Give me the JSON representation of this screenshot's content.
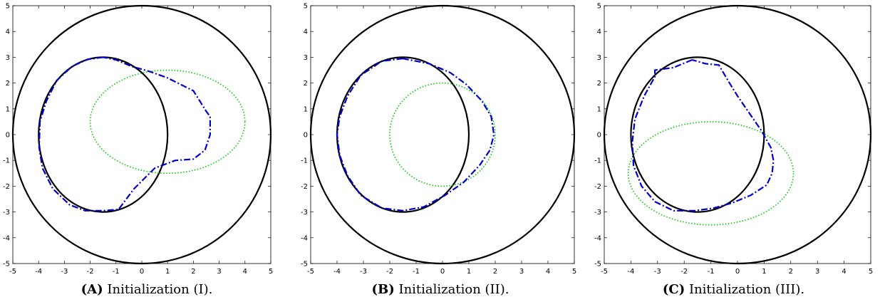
{
  "chart_data": [
    {
      "type": "line",
      "panel_label": "(A)",
      "caption": "Initialization (I).",
      "xlim": [
        -5,
        5
      ],
      "ylim": [
        -5,
        5
      ],
      "xticks": [
        -5,
        -4,
        -3,
        -2,
        -1,
        0,
        1,
        2,
        3,
        4,
        5
      ],
      "yticks": [
        -5,
        -4,
        -3,
        -2,
        -1,
        0,
        1,
        2,
        3,
        4,
        5
      ],
      "grid": false,
      "colors": {
        "outer": "#000000",
        "inner": "#000000",
        "reconstruction": "#0000cc",
        "initial": "#00cc00"
      },
      "series": [
        {
          "style": "solid-black",
          "shape": "ellipse",
          "center": [
            0,
            0
          ],
          "radii": [
            5,
            5
          ]
        },
        {
          "style": "solid-black",
          "shape": "ellipse",
          "center": [
            -1.5,
            0
          ],
          "radii": [
            2.5,
            3
          ]
        },
        {
          "style": "dotted-green",
          "shape": "ellipse",
          "center": [
            1,
            0.5
          ],
          "radii": [
            3,
            2
          ]
        },
        {
          "style": "dashdot-blue",
          "shape": "polyline",
          "x": [
            -1.5,
            -2.1,
            -2.7,
            -3.3,
            -3.7,
            -3.95,
            -3.98,
            -3.85,
            -3.45,
            -2.8,
            -2.2,
            -1.5,
            -0.9,
            -0.3,
            0.5,
            1.3,
            2.0,
            2.45,
            2.65,
            2.65,
            2.5,
            2.0,
            1.0,
            0.3,
            -0.4,
            -1.0,
            -1.5
          ],
          "y": [
            3.0,
            2.92,
            2.65,
            2.1,
            1.3,
            0.5,
            -0.5,
            -1.3,
            -2.1,
            -2.72,
            -2.95,
            -2.95,
            -2.9,
            -2.1,
            -1.3,
            -1.0,
            -0.95,
            -0.6,
            0.0,
            0.7,
            0.9,
            1.7,
            2.2,
            2.45,
            2.65,
            2.9,
            3.0
          ]
        }
      ]
    },
    {
      "type": "line",
      "panel_label": "(B)",
      "caption": "Initialization (II).",
      "xlim": [
        -5,
        5
      ],
      "ylim": [
        -5,
        5
      ],
      "xticks": [
        -5,
        -4,
        -3,
        -2,
        -1,
        0,
        1,
        2,
        3,
        4,
        5
      ],
      "yticks": [
        -5,
        -4,
        -3,
        -2,
        -1,
        0,
        1,
        2,
        3,
        4,
        5
      ],
      "grid": false,
      "colors": {
        "outer": "#000000",
        "inner": "#000000",
        "reconstruction": "#0000cc",
        "initial": "#00cc00"
      },
      "series": [
        {
          "style": "solid-black",
          "shape": "ellipse",
          "center": [
            0,
            0
          ],
          "radii": [
            5,
            5
          ]
        },
        {
          "style": "solid-black",
          "shape": "ellipse",
          "center": [
            -1.5,
            0
          ],
          "radii": [
            2.5,
            3
          ]
        },
        {
          "style": "dotted-green",
          "shape": "ellipse",
          "center": [
            0,
            0
          ],
          "radii": [
            2,
            2
          ]
        },
        {
          "style": "dashdot-blue",
          "shape": "polyline",
          "x": [
            -1.5,
            -2.3,
            -3.1,
            -3.6,
            -3.9,
            -4.0,
            -3.9,
            -3.6,
            -3.1,
            -2.3,
            -1.5,
            -0.7,
            0.1,
            0.8,
            1.4,
            1.8,
            1.95,
            1.85,
            1.5,
            0.9,
            0.3,
            -0.5,
            -1.5
          ],
          "y": [
            2.95,
            2.85,
            2.3,
            1.5,
            0.7,
            0.0,
            -0.8,
            -1.6,
            -2.35,
            -2.85,
            -2.95,
            -2.8,
            -2.35,
            -1.85,
            -1.2,
            -0.6,
            0.0,
            0.7,
            1.3,
            1.95,
            2.4,
            2.75,
            2.95
          ]
        }
      ]
    },
    {
      "type": "line",
      "panel_label": "(C)",
      "caption": "Initialization (III).",
      "xlim": [
        -5,
        5
      ],
      "ylim": [
        -5,
        5
      ],
      "xticks": [
        -5,
        -4,
        -3,
        -2,
        -1,
        0,
        1,
        2,
        3,
        4,
        5
      ],
      "yticks": [
        -5,
        -4,
        -3,
        -2,
        -1,
        0,
        1,
        2,
        3,
        4,
        5
      ],
      "grid": false,
      "colors": {
        "outer": "#000000",
        "inner": "#000000",
        "reconstruction": "#0000cc",
        "initial": "#00cc00"
      },
      "series": [
        {
          "style": "solid-black",
          "shape": "ellipse",
          "center": [
            0,
            0
          ],
          "radii": [
            5,
            5
          ]
        },
        {
          "style": "solid-black",
          "shape": "ellipse",
          "center": [
            -1.5,
            0
          ],
          "radii": [
            2.5,
            3
          ]
        },
        {
          "style": "dotted-green",
          "shape": "ellipse",
          "center": [
            -1,
            -1.5
          ],
          "radii": [
            3.1,
            2
          ]
        },
        {
          "style": "dashdot-blue",
          "shape": "polyline",
          "x": [
            -1.7,
            -2.4,
            -3.1,
            -3.1,
            -3.5,
            -3.85,
            -3.95,
            -3.9,
            -3.6,
            -3.1,
            -2.4,
            -1.6,
            -0.9,
            -0.2,
            0.5,
            1.1,
            1.3,
            1.35,
            1.25,
            0.9,
            0.6,
            0.3,
            0.0,
            -0.3,
            -0.7,
            -1.2,
            -1.7
          ],
          "y": [
            2.9,
            2.6,
            2.5,
            2.25,
            1.5,
            0.6,
            -0.3,
            -1.2,
            -2.0,
            -2.6,
            -2.95,
            -2.95,
            -2.85,
            -2.65,
            -2.35,
            -1.95,
            -1.5,
            -1.0,
            -0.5,
            0.15,
            0.6,
            1.05,
            1.5,
            2.0,
            2.7,
            2.75,
            2.9
          ]
        }
      ]
    }
  ]
}
